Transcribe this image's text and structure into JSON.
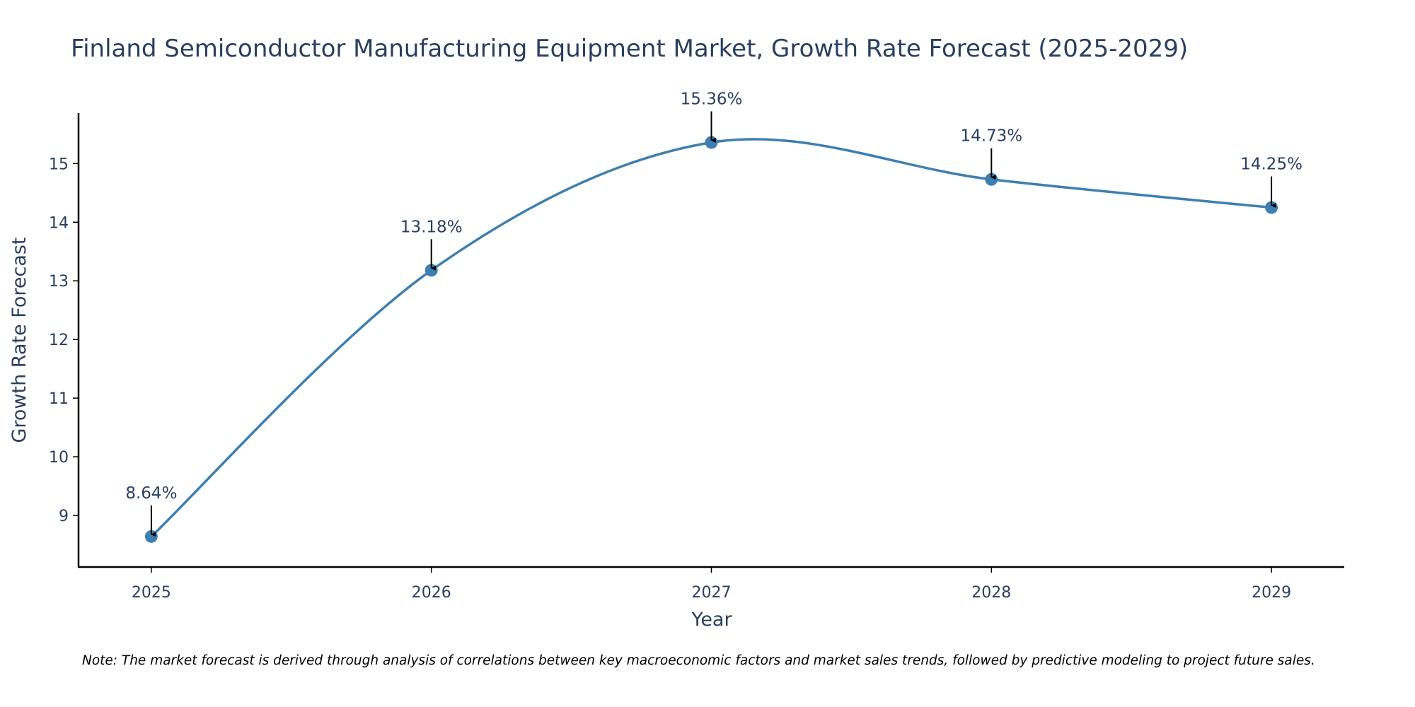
{
  "chart_data": {
    "type": "line",
    "title": "Finland Semiconductor Manufacturing Equipment Market, Growth Rate Forecast (2025-2029)",
    "xlabel": "Year",
    "ylabel": "Growth Rate Forecast",
    "categories": [
      "2025",
      "2026",
      "2027",
      "2028",
      "2029"
    ],
    "x": [
      2025,
      2026,
      2027,
      2028,
      2029
    ],
    "values": [
      8.64,
      13.18,
      15.36,
      14.73,
      14.25
    ],
    "data_labels": [
      "8.64%",
      "13.18%",
      "15.36%",
      "14.73%",
      "14.25%"
    ],
    "yticks": [
      9,
      10,
      11,
      12,
      13,
      14,
      15
    ],
    "ytick_labels": [
      "9",
      "10",
      "11",
      "12",
      "13",
      "14",
      "15"
    ],
    "xlim": [
      2024.74,
      2029.26
    ],
    "ylim": [
      8.12,
      15.86
    ],
    "line_shape": "spline",
    "grid": false,
    "legend": "none",
    "line_color": "#3d7fb0",
    "marker_color": "#3d7fb0",
    "arrow_color": "#000000",
    "note": "Note: The market forecast is derived through analysis of correlations between key macroeconomic factors and market sales trends, followed by predictive modeling to project future sales."
  }
}
